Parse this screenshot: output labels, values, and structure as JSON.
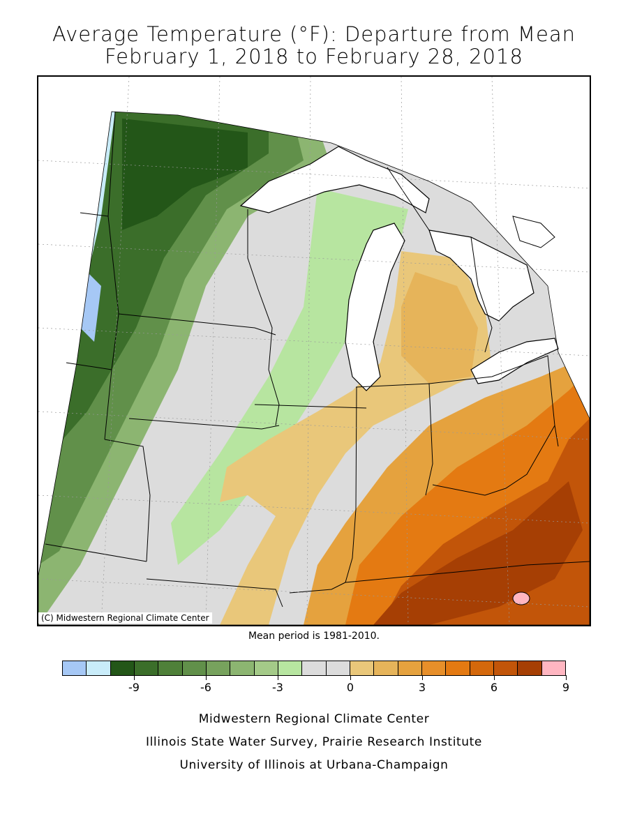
{
  "title_line1": "Average Temperature (°F): Departure from Mean",
  "title_line2": "February 1, 2018 to February 28, 2018",
  "credit": "(C) Midwestern Regional Climate Center",
  "mean_period": "Mean period is 1981-2010.",
  "legend": {
    "colors": [
      "#a6c8f5",
      "#c9ecf9",
      "#235618",
      "#3b6e2a",
      "#4f8039",
      "#61904a",
      "#77a25d",
      "#8cb571",
      "#a4ca88",
      "#b7e5a0",
      "#dcdcdc",
      "#dcdcdc",
      "#e9c77a",
      "#e6b45a",
      "#e5a23e",
      "#e78f2a",
      "#e47a12",
      "#d4680c",
      "#c25509",
      "#a63f04",
      "#ffb6c1"
    ],
    "tick_labels": [
      "-9",
      "-6",
      "-3",
      "0",
      "3",
      "6",
      "9"
    ]
  },
  "footer": {
    "line1": "Midwestern Regional Climate Center",
    "line2": "Illinois State Water Survey, Prairie Research Institute",
    "line3": "University of Illinois at Urbana-Champaign"
  }
}
